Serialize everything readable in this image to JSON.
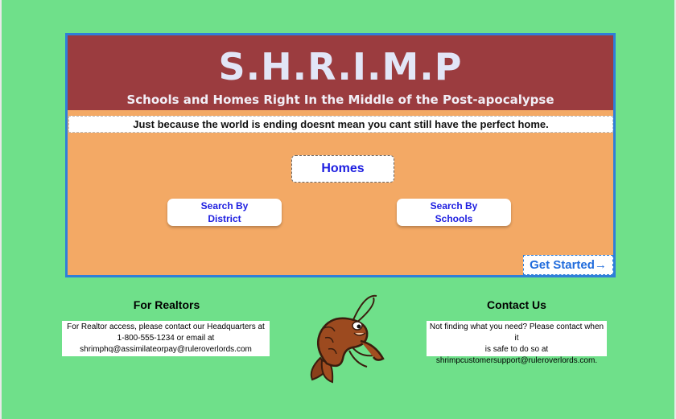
{
  "header": {
    "title": "S.H.R.I.M.P",
    "subtitle": "Schools and Homes Right In the Middle of the Post-apocalypse",
    "tagline": "Just because the world is ending doesnt mean you cant still have the perfect home."
  },
  "nav": {
    "homes_label": "Homes",
    "search_district_line1": "Search By",
    "search_district_line2": "District",
    "search_schools_line1": "Search By",
    "search_schools_line2": "Schools",
    "get_started_label": "Get Started",
    "get_started_arrow": "→"
  },
  "realtors": {
    "heading": "For Realtors",
    "line1": "For Realtor access, please contact our Headquarters at",
    "line2": "1-800-555-1234 or email at",
    "email": "shrimphq@assimilateorpay@ruleroverlords.com"
  },
  "contact": {
    "heading": "Contact Us",
    "line1": "Not finding what you need? Please contact when it",
    "line2": "is safe to do so at",
    "email": "shrimpcustomersupport@ruleroverlords.com."
  },
  "colors": {
    "background": "#6fe08a",
    "banner": "#9b3c3f",
    "card": "#f3a965",
    "link_blue": "#1d1ee0",
    "border_blue": "#2f7fd8"
  },
  "icons": {
    "mascot": "shrimp-mascot-icon"
  }
}
